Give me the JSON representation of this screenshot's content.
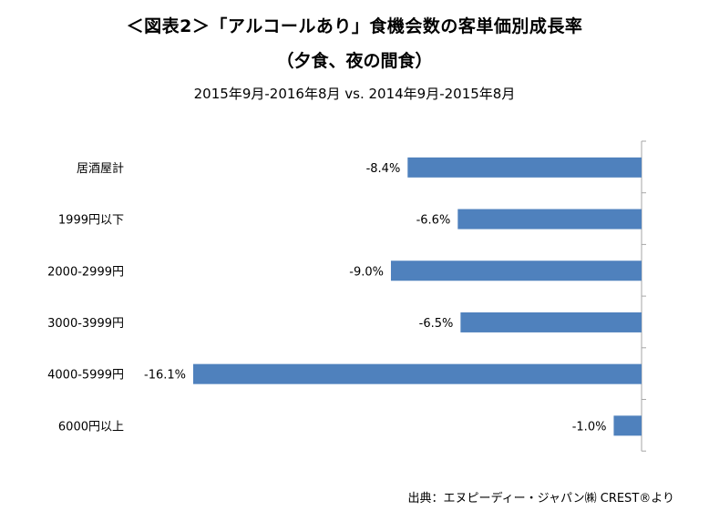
{
  "header": {
    "title": "＜図表2＞「アルコールあり」食機会数の客単価別成長率",
    "title_sub": "（夕食、夜の間食）",
    "subtitle": "2015年9月-2016年8月 vs.  2014年9月-2015年8月"
  },
  "footer": {
    "source": "出典：エヌピーディー・ジャパン㈱ CREST®より"
  },
  "colors": {
    "bar": "#4f81bd",
    "axis": "#a6a6a6"
  },
  "chart_data": {
    "type": "bar",
    "orientation": "horizontal",
    "categories": [
      "居酒屋計",
      "1999円以下",
      "2000-2999円",
      "3000-3999円",
      "4000-5999円",
      "6000円以上"
    ],
    "values": [
      -8.4,
      -6.6,
      -9.0,
      -6.5,
      -16.1,
      -1.0
    ],
    "data_labels": [
      "-8.4%",
      "-6.6%",
      "-9.0%",
      "-6.5%",
      "-16.1%",
      "-1.0%"
    ],
    "xlim": [
      -20,
      0
    ],
    "grid": false,
    "title": "＜図表2＞「アルコールあり」食機会数の客単価別成長率",
    "subtitle": "2015年9月-2016年8月 vs.  2014年9月-2015年8月",
    "xlabel": "",
    "ylabel": ""
  }
}
